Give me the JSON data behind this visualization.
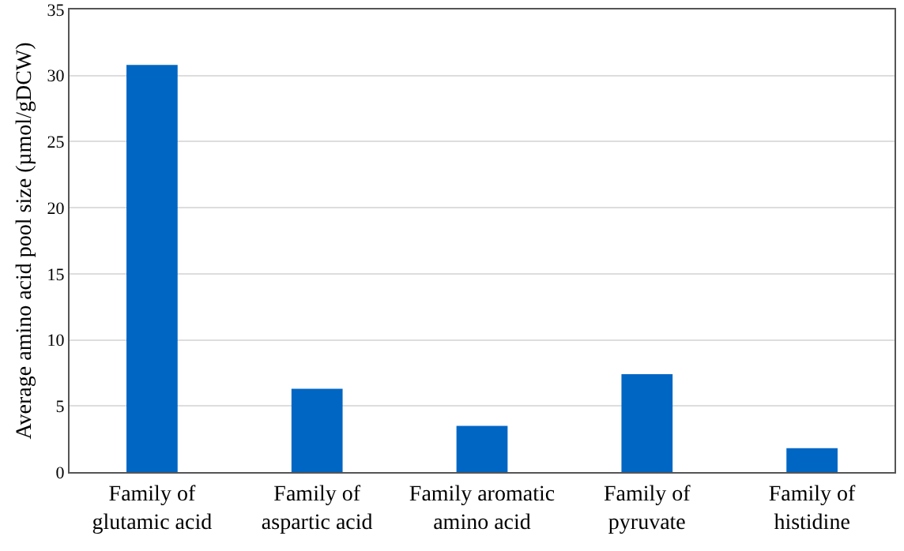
{
  "chart_data": {
    "type": "bar",
    "ylabel": "Average amino acid pool size (µmol/gDCW)",
    "categories": [
      "Family of glutamic acid",
      "Family of aspartic acid",
      "Family aromatic amino acid",
      "Family of pyruvate",
      "Family of histidine"
    ],
    "values": [
      30.8,
      6.3,
      3.5,
      7.4,
      1.8
    ],
    "color": "#0066c4",
    "ylim": [
      0,
      35
    ],
    "yticks": [
      0,
      5,
      10,
      15,
      20,
      25,
      30,
      35
    ],
    "grid": "y"
  }
}
